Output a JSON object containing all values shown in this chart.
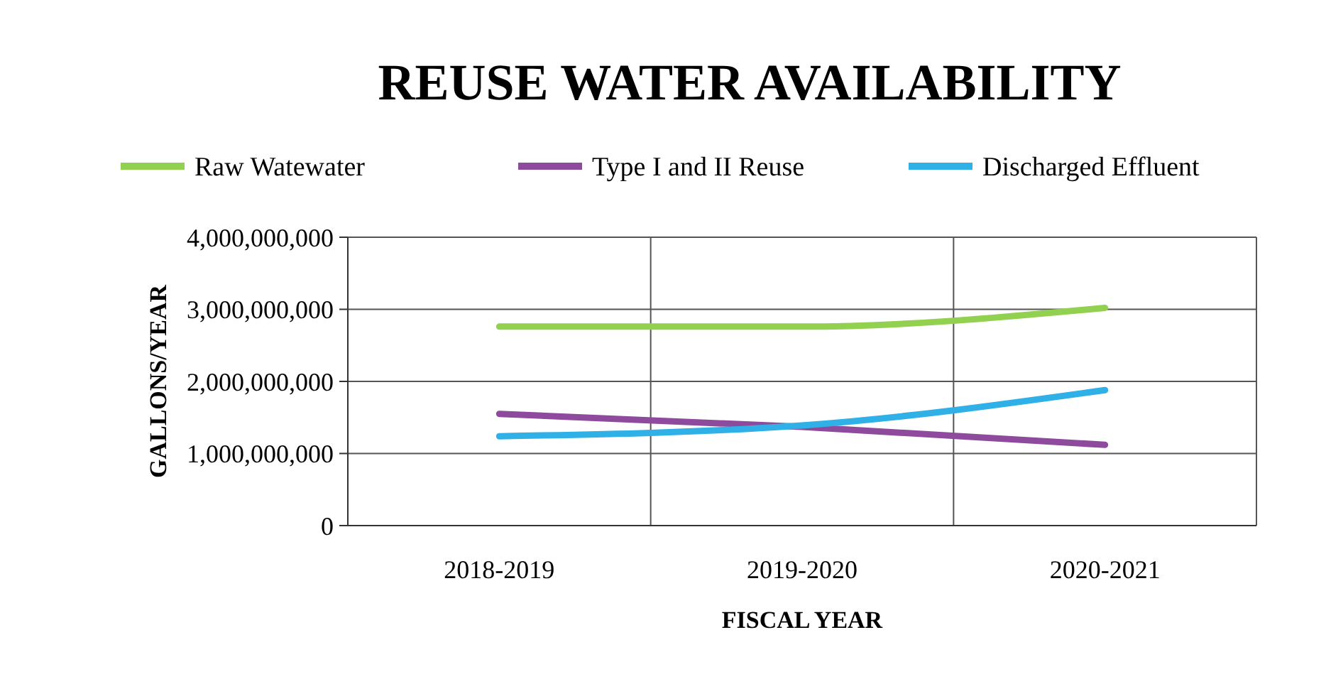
{
  "chart_data": {
    "type": "line",
    "title": "REUSE WATER AVAILABILITY",
    "xlabel": "FISCAL YEAR",
    "ylabel": "GALLONS/YEAR",
    "categories": [
      "2018-2019",
      "2019-2020",
      "2020-2021"
    ],
    "series": [
      {
        "name": "Raw Watewater",
        "color": "#92d050",
        "values": [
          2760000000,
          2760000000,
          3020000000
        ]
      },
      {
        "name": "Type I and II Reuse",
        "color": "#8e4a9c",
        "values": [
          1550000000,
          1370000000,
          1120000000
        ]
      },
      {
        "name": "Discharged Effluent",
        "color": "#2fb0e6",
        "values": [
          1240000000,
          1390000000,
          1880000000
        ]
      }
    ],
    "ylim": [
      0,
      4000000000
    ],
    "yticks": [
      {
        "value": 0,
        "label": "0"
      },
      {
        "value": 1000000000,
        "label": "1,000,000,000"
      },
      {
        "value": 2000000000,
        "label": "2,000,000,000"
      },
      {
        "value": 3000000000,
        "label": "3,000,000,000"
      },
      {
        "value": 4000000000,
        "label": "4,000,000,000"
      }
    ],
    "grid": true,
    "legend": "top",
    "marker": "none",
    "line_style": "solid"
  }
}
